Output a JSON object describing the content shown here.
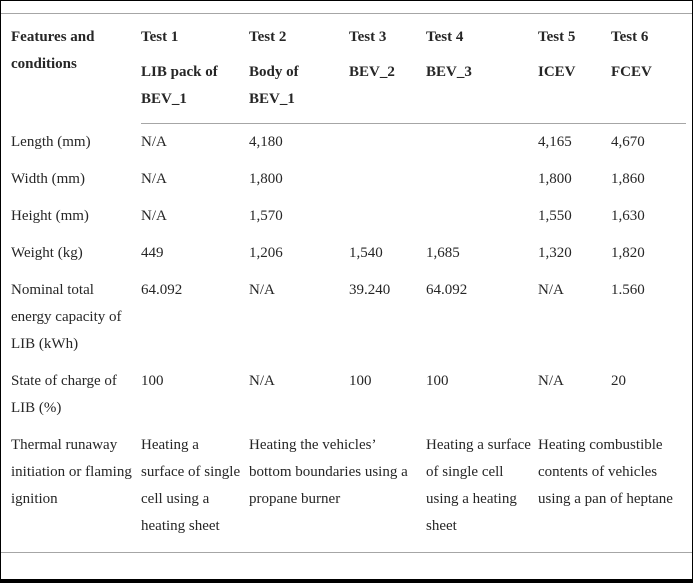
{
  "table": {
    "header": {
      "feature_col": "Features and conditions",
      "tests": [
        {
          "title": "Test 1",
          "subtitle": "LIB pack of BEV_1"
        },
        {
          "title": "Test 2",
          "subtitle": "Body of BEV_1"
        },
        {
          "title": "Test 3",
          "subtitle": "BEV_2"
        },
        {
          "title": "Test 4",
          "subtitle": "BEV_3"
        },
        {
          "title": "Test 5",
          "subtitle": "ICEV"
        },
        {
          "title": "Test 6",
          "subtitle": "FCEV"
        }
      ]
    },
    "rows": [
      {
        "label": "Length (mm)",
        "values": [
          "N/A",
          "4,180",
          "",
          "",
          "4,165",
          "4,670"
        ]
      },
      {
        "label": "Width (mm)",
        "values": [
          "N/A",
          "1,800",
          "",
          "",
          "1,800",
          "1,860"
        ]
      },
      {
        "label": "Height (mm)",
        "values": [
          "N/A",
          "1,570",
          "",
          "",
          "1,550",
          "1,630"
        ]
      },
      {
        "label": "Weight (kg)",
        "values": [
          "449",
          "1,206",
          "1,540",
          "1,685",
          "1,320",
          "1,820"
        ]
      },
      {
        "label": "Nominal total energy capacity of LIB (kWh)",
        "values": [
          "64.092",
          "N/A",
          "39.240",
          "64.092",
          "N/A",
          "1.560"
        ]
      },
      {
        "label": "State of charge of LIB (%)",
        "values": [
          "100",
          "N/A",
          "100",
          "100",
          "N/A",
          "20"
        ]
      }
    ],
    "thermal_row": {
      "label": "Thermal runaway initiation or flaming ignition",
      "cells": [
        {
          "text": "Heating a surface of single cell using a heating sheet"
        },
        {
          "text": "Heating the vehicles’ bottom boundaries using a propane burner"
        },
        {
          "text": "Heating a surface of single cell using a heating sheet"
        },
        {
          "text": "Heating combustible contents of vehicles using a pan of heptane"
        }
      ]
    }
  }
}
